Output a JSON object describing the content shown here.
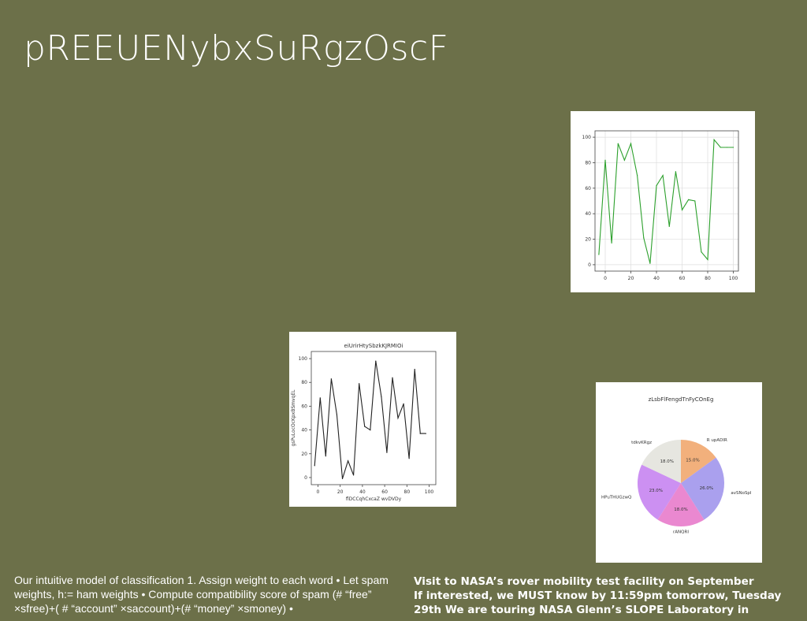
{
  "slide": {
    "title": "pREEUENybxSuRgzOscF",
    "body_left": "Our intuitive model of classification 1. Assign weight to each word • Let spam weights, h:= ham weights • Compute compatibility score of spam (# “free” ×sfree)+( # “account” ×saccount)+(# “money” ×smoney) •",
    "body_right_lines": [
      "Visit to NASA’s rover mobility test facility on September",
      "If interested, we MUST know by 11:59pm tomorrow, Tuesday",
      "29th We are touring NASA Glenn’s SLOPE Laboratory in"
    ]
  },
  "chart_data": [
    {
      "type": "line",
      "title": "",
      "xlabel": "",
      "ylabel": "",
      "color": "#2ca02c",
      "x": [
        -5,
        0,
        5,
        10,
        15,
        20,
        25,
        30,
        35,
        40,
        45,
        50,
        55,
        60,
        65,
        70,
        75,
        80,
        85,
        90,
        95,
        100
      ],
      "y": [
        8,
        82,
        17,
        95,
        82,
        95,
        70,
        21,
        1,
        62,
        70,
        30,
        73,
        43,
        51,
        50,
        10,
        4,
        98,
        92,
        92,
        92
      ],
      "xticks": [
        0,
        20,
        40,
        60,
        80,
        100
      ],
      "yticks": [
        0,
        20,
        40,
        60,
        80,
        100
      ],
      "xlim": [
        -8,
        104
      ],
      "ylim": [
        -5,
        105
      ],
      "grid": true
    },
    {
      "type": "line",
      "title": "eiUrirHtySbzkKJRMIOi",
      "xlabel": "flDCCqhCxcaZ wvDVDy",
      "ylabel": "gsPuLocOcKpxBSmvqEL",
      "color": "#222222",
      "x": [
        -3,
        2,
        7,
        12,
        17,
        22,
        27,
        32,
        37,
        42,
        47,
        52,
        57,
        62,
        67,
        72,
        77,
        82,
        87,
        92,
        97
      ],
      "y": [
        10,
        67,
        18,
        83,
        53,
        -1,
        14,
        2,
        79,
        43,
        40,
        98,
        68,
        21,
        84,
        50,
        62,
        16,
        91,
        37,
        37
      ],
      "xticks": [
        0,
        20,
        40,
        60,
        80,
        100
      ],
      "yticks": [
        0,
        20,
        40,
        60,
        80,
        100
      ],
      "xlim": [
        -6,
        106
      ],
      "ylim": [
        -6,
        106
      ],
      "grid": false
    },
    {
      "type": "pie",
      "title": "zLsbFlFengdTnFyCOnEg",
      "labels": [
        "R  upADIR",
        "avSNoSpl",
        "rANQRI",
        "HPuTHUGzwQ",
        "tdkvKRgz"
      ],
      "values": [
        15.0,
        26.0,
        18.0,
        23.0,
        18.0
      ],
      "value_labels": [
        "15.0%",
        "26.0%",
        "18.0%",
        "23.0%",
        "18.0%"
      ],
      "colors": [
        "#f2b07c",
        "#aaa0ee",
        "#ea88d0",
        "#cc90f2",
        "#e6e6e0"
      ]
    }
  ]
}
